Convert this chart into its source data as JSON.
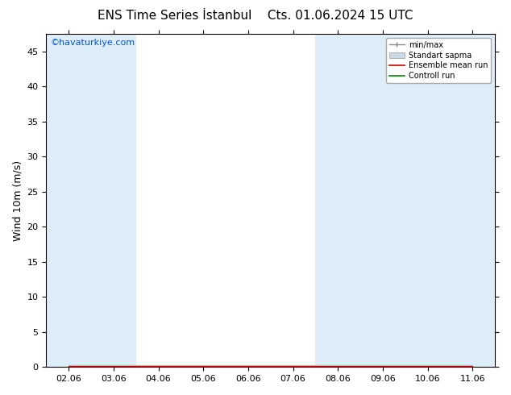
{
  "title": "ENS Time Series İstanbul",
  "title2": "Cts. 01.06.2024 15 UTC",
  "ylabel": "Wind 10m (m/s)",
  "watermark": "©havaturkiye.com",
  "watermark_color": "#0055cc",
  "ylim": [
    0,
    47.5
  ],
  "yticks": [
    0,
    5,
    10,
    15,
    20,
    25,
    30,
    35,
    40,
    45
  ],
  "x_labels": [
    "02.06",
    "03.06",
    "04.06",
    "05.06",
    "06.06",
    "07.06",
    "08.06",
    "09.06",
    "10.06",
    "11.06"
  ],
  "x_positions": [
    0,
    1,
    2,
    3,
    4,
    5,
    6,
    7,
    8,
    9
  ],
  "shaded_bands": [
    0,
    1,
    6,
    7,
    8,
    9
  ],
  "band_color": "#ddeef8",
  "background_color": "#ffffff",
  "title_fontsize": 11,
  "ylabel_fontsize": 9,
  "tick_labelsize": 8
}
